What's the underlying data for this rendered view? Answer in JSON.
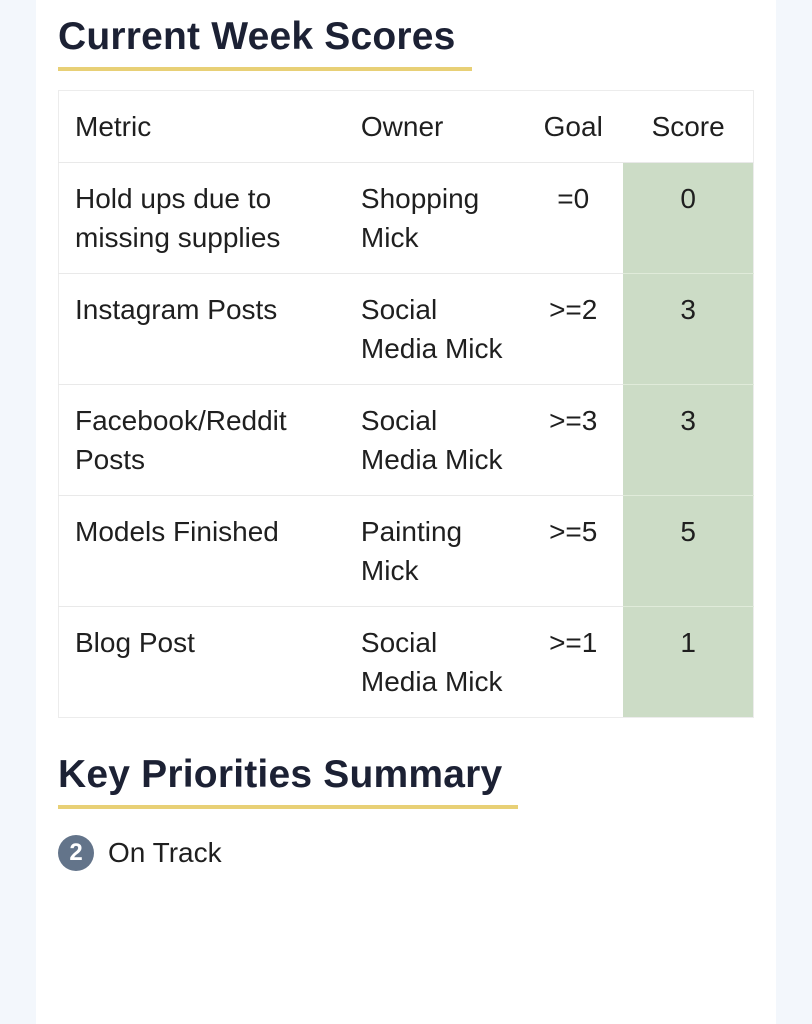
{
  "page": {
    "background_color": "#f3f7fc",
    "card_color": "#ffffff",
    "heading_color": "#1c2134",
    "heading_underline_color": "#e8d076"
  },
  "scores_section": {
    "title": "Current Week Scores",
    "table": {
      "columns": [
        "Metric",
        "Owner",
        "Goal",
        "Score"
      ],
      "score_highlight_color": "#ccdcc6",
      "rows": [
        {
          "metric": "Hold ups due to missing supplies",
          "owner": "Shopping Mick",
          "goal": "=0",
          "score": "0"
        },
        {
          "metric": "Instagram Posts",
          "owner": "Social Media Mick",
          "goal": ">=2",
          "score": "3"
        },
        {
          "metric": "Facebook/Reddit Posts",
          "owner": "Social Media Mick",
          "goal": ">=3",
          "score": "3"
        },
        {
          "metric": "Models Finished",
          "owner": "Painting Mick",
          "goal": ">=5",
          "score": "5"
        },
        {
          "metric": "Blog Post",
          "owner": "Social Media Mick",
          "goal": ">=1",
          "score": "1"
        }
      ]
    }
  },
  "priorities_section": {
    "title": "Key Priorities Summary",
    "badge_count": "2",
    "badge_color": "#63748a",
    "status_label": "On Track"
  }
}
